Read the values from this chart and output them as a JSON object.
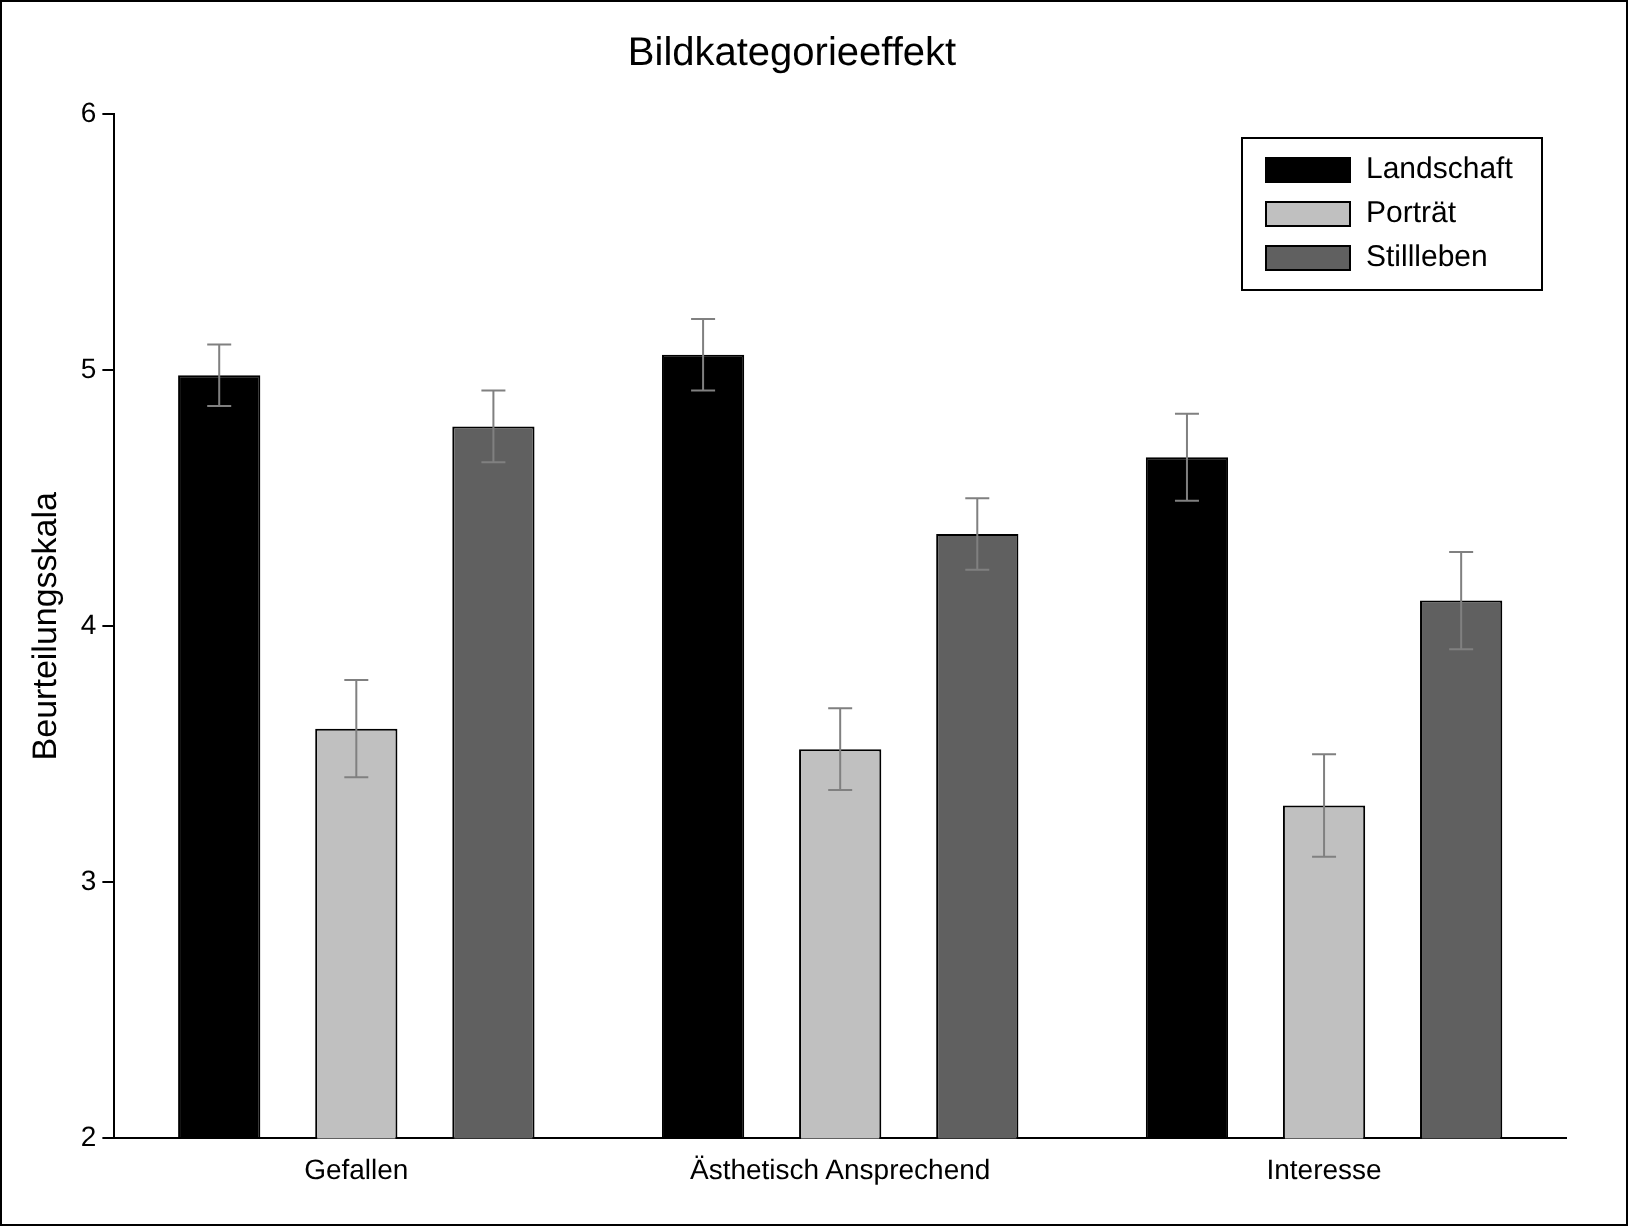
{
  "chart_data": {
    "type": "bar",
    "title": "Bildkategorieeffekt",
    "ylabel": "Beurteilungsskala",
    "categories": [
      "Gefallen",
      "Ästhetisch Ansprechend",
      "Interesse"
    ],
    "series": [
      {
        "name": "Landschaft",
        "color": "#000000",
        "values": [
          4.98,
          5.06,
          4.66
        ],
        "errors": [
          0.12,
          0.14,
          0.17
        ]
      },
      {
        "name": "Porträt",
        "color": "#c0c0c0",
        "values": [
          3.6,
          3.52,
          3.3
        ],
        "errors": [
          0.19,
          0.16,
          0.2
        ]
      },
      {
        "name": "Stillleben",
        "color": "#606060",
        "values": [
          4.78,
          4.36,
          4.1
        ],
        "errors": [
          0.14,
          0.14,
          0.19
        ]
      }
    ],
    "ylim": [
      2,
      6
    ],
    "yticks": [
      2,
      3,
      4,
      5,
      6
    ],
    "grid": false,
    "legend": "top right"
  }
}
